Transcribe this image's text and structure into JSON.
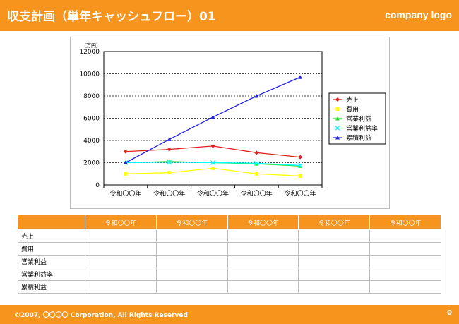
{
  "header": {
    "title": "収支計画（単年キャッシュフロー）01",
    "logo": "company logo"
  },
  "chart_data": {
    "type": "line",
    "unit_label": "（万円）",
    "categories": [
      "令和〇〇年",
      "令和〇〇年",
      "令和〇〇年",
      "令和〇〇年",
      "令和〇〇年"
    ],
    "ylim": [
      0,
      12000
    ],
    "yticks": [
      0,
      2000,
      4000,
      6000,
      8000,
      10000,
      12000
    ],
    "grid": true,
    "legend_position": "right",
    "series": [
      {
        "name": "売上",
        "color": "#e02020",
        "marker": "diamond",
        "values": [
          3000,
          3200,
          3500,
          2900,
          2500
        ]
      },
      {
        "name": "費用",
        "color": "#ffff00",
        "marker": "square",
        "values": [
          1000,
          1100,
          1500,
          1000,
          800
        ]
      },
      {
        "name": "営業利益",
        "color": "#22dd22",
        "marker": "triangle",
        "values": [
          2000,
          2100,
          2000,
          1900,
          1700
        ]
      },
      {
        "name": "営業利益率",
        "color": "#00ffff",
        "marker": "x",
        "values": [
          2000,
          2050,
          2000,
          1950,
          1750
        ]
      },
      {
        "name": "累積利益",
        "color": "#2222dd",
        "marker": "triangle",
        "values": [
          2000,
          4100,
          6100,
          8000,
          9700
        ]
      }
    ]
  },
  "table": {
    "headers": [
      "令和〇〇年",
      "令和〇〇年",
      "令和〇〇年",
      "令和〇〇年",
      "令和〇〇年"
    ],
    "rows": [
      "売上",
      "費用",
      "営業利益",
      "営業利益率",
      "累積利益"
    ]
  },
  "footer": {
    "copyright": "©2007, 〇〇〇〇 Corporation, All Rights Reserved",
    "page": "0"
  }
}
